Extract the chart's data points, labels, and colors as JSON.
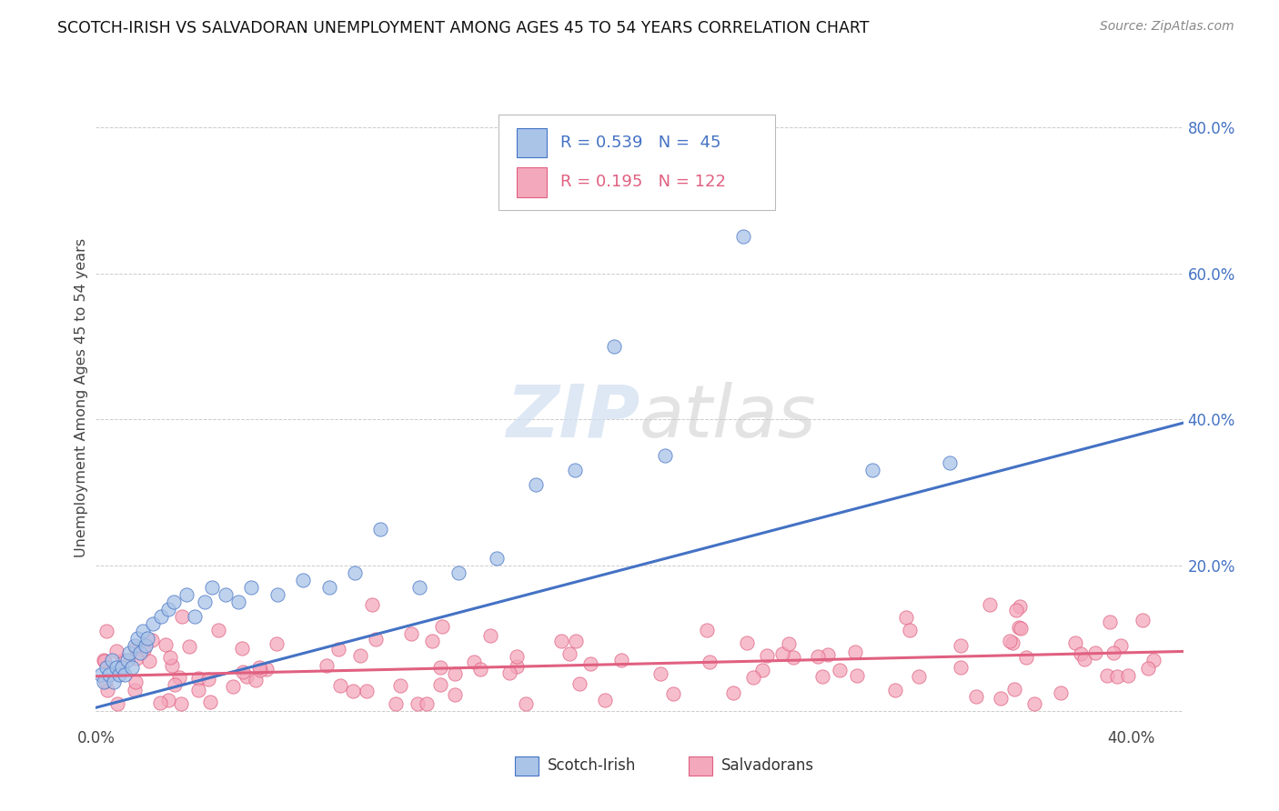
{
  "title": "SCOTCH-IRISH VS SALVADORAN UNEMPLOYMENT AMONG AGES 45 TO 54 YEARS CORRELATION CHART",
  "source": "Source: ZipAtlas.com",
  "ylabel": "Unemployment Among Ages 45 to 54 years",
  "xlim": [
    0.0,
    0.42
  ],
  "ylim": [
    -0.02,
    0.88
  ],
  "xticks": [
    0.0,
    0.1,
    0.2,
    0.3,
    0.4
  ],
  "xticklabels": [
    "0.0%",
    "",
    "",
    "",
    "40.0%"
  ],
  "yticks_left": [
    0.0,
    0.2,
    0.4,
    0.6,
    0.8
  ],
  "yticklabels_left": [
    "",
    "",
    "",
    "",
    ""
  ],
  "yticks_right": [
    0.2,
    0.4,
    0.6,
    0.8
  ],
  "yticklabels_right": [
    "20.0%",
    "40.0%",
    "60.0%",
    "80.0%"
  ],
  "scotch_irish_R": 0.539,
  "scotch_irish_N": 45,
  "salvadoran_R": 0.195,
  "salvadoran_N": 122,
  "scotch_irish_color": "#aac4e8",
  "salvadoran_color": "#f4a8bc",
  "trend_scotch_color": "#4472c4",
  "trend_salvadoran_color": "#e06080",
  "background_color": "#ffffff",
  "grid_color": "#cccccc",
  "watermark_color": "#d0dff0",
  "si_trend_x0": 0.0,
  "si_trend_y0": 0.005,
  "si_trend_x1": 0.42,
  "si_trend_y1": 0.395,
  "sal_trend_x0": 0.0,
  "sal_trend_y0": 0.048,
  "sal_trend_x1": 0.42,
  "sal_trend_y1": 0.082
}
